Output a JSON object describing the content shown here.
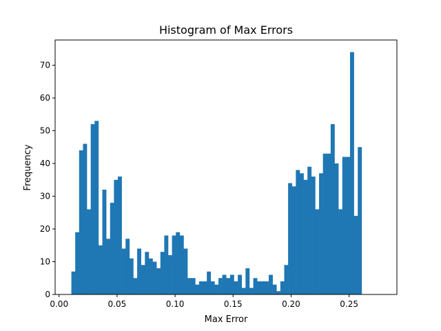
{
  "chart_data": {
    "type": "bar",
    "title": "Histogram of Max Errors",
    "xlabel": "Max Error",
    "ylabel": "Frequency",
    "xlim": [
      -0.0034,
      0.2912
    ],
    "ylim": [
      0,
      77.7
    ],
    "xticks": [
      0.0,
      0.05,
      0.1,
      0.15,
      0.2,
      0.25
    ],
    "xtick_labels": [
      "0.00",
      "0.05",
      "0.10",
      "0.15",
      "0.20",
      "0.25"
    ],
    "yticks": [
      0,
      10,
      20,
      30,
      40,
      50,
      60,
      70
    ],
    "ytick_labels": [
      "0",
      "10",
      "20",
      "30",
      "40",
      "50",
      "60",
      "70"
    ],
    "bar_color": "#1f77b4",
    "bin_start": 0.0106,
    "bin_width": 0.003336,
    "values": [
      7,
      19,
      44,
      46,
      26,
      52,
      53,
      15,
      32,
      17,
      28,
      35,
      36,
      14,
      17,
      11,
      5,
      14,
      9,
      13,
      11,
      10,
      8,
      13,
      18,
      12,
      18,
      19,
      18,
      14,
      5,
      5,
      3,
      4,
      4,
      7,
      4,
      3,
      5,
      6,
      5,
      6,
      4,
      6,
      2,
      8,
      2,
      5,
      4,
      4,
      4,
      6,
      3,
      1,
      4,
      9,
      34,
      33,
      38,
      37,
      35,
      39,
      36,
      26,
      37,
      43,
      43,
      52,
      40,
      26,
      42,
      42,
      74,
      24,
      45
    ],
    "grid": false,
    "legend": "none"
  }
}
